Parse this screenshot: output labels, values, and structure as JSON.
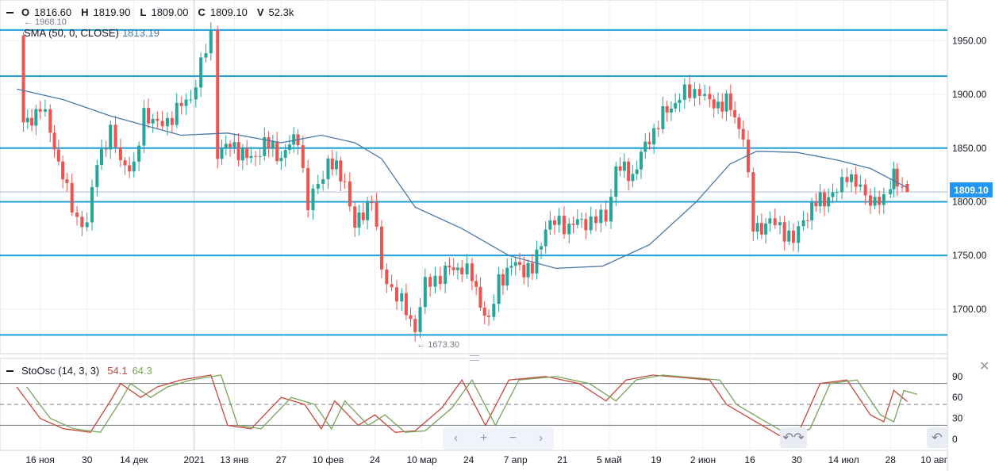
{
  "ohlc": {
    "o_label": "O",
    "o_value": "1816.60",
    "h_label": "H",
    "h_value": "1819.90",
    "l_label": "L",
    "l_value": "1809.00",
    "c_label": "C",
    "c_value": "1809.10",
    "v_label": "V",
    "v_value": "52.3k"
  },
  "indicators": {
    "sma_label": "SMA (50, 0, CLOSE)",
    "sma_value": "1813.19",
    "sto_label": "StoOsc (14, 3, 3)",
    "sto_k": "54.1",
    "sto_d": "64.3"
  },
  "price_axis": {
    "ticks": [
      "1950.00",
      "1900.00",
      "1850.00",
      "1800.00",
      "1750.00",
      "1700.00"
    ],
    "last_price": "1809.10"
  },
  "sto_axis": {
    "ticks": [
      "90",
      "60",
      "30",
      "0"
    ]
  },
  "time_axis": {
    "labels": [
      "16 ноя",
      "30",
      "14 дек",
      "2021",
      "13 янв",
      "27",
      "10 фев",
      "24",
      "10 мар",
      "24",
      "7 апр",
      "21",
      "5 май",
      "19",
      "2 июн",
      "16",
      "30",
      "14 июл",
      "28",
      "10 авг"
    ]
  },
  "annotations": {
    "high_marker": "1968.10",
    "low_marker": "1673.30"
  },
  "colors": {
    "up": "#26a69a",
    "down": "#ef5350",
    "sma": "#4a78a6",
    "hline": "#1e9fd8",
    "sto_k": "#c8463a",
    "sto_d": "#7aa35a",
    "grid": "#eef0f3"
  },
  "nav": {
    "left_icon": "chevron-left-icon",
    "plus_icon": "plus-icon",
    "minus_icon": "minus-icon",
    "right_icon": "chevron-right-icon",
    "reset_icon": "reset-icon"
  },
  "chart_data": {
    "type": "candlestick",
    "symbol_stats": {
      "open": 1816.6,
      "high": 1819.9,
      "low": 1809.0,
      "close": 1809.1,
      "volume": "52.3k"
    },
    "price_range": [
      1660,
      1985
    ],
    "horizontal_levels": [
      1960,
      1917,
      1850,
      1800,
      1750,
      1676
    ],
    "close_path": [
      [
        "2020-11-09",
        1955
      ],
      [
        "2020-11-11",
        1870
      ],
      [
        "2020-11-16",
        1888
      ],
      [
        "2020-11-19",
        1867
      ],
      [
        "2020-11-24",
        1808
      ],
      [
        "2020-11-27",
        1785
      ],
      [
        "2020-11-30",
        1777
      ],
      [
        "2020-12-03",
        1840
      ],
      [
        "2020-12-07",
        1863
      ],
      [
        "2020-12-10",
        1840
      ],
      [
        "2020-12-14",
        1828
      ],
      [
        "2020-12-17",
        1885
      ],
      [
        "2020-12-21",
        1870
      ],
      [
        "2020-12-24",
        1876
      ],
      [
        "2020-12-31",
        1898
      ],
      [
        "2021-01-06",
        1955
      ],
      [
        "2021-01-08",
        1848
      ],
      [
        "2021-01-13",
        1852
      ],
      [
        "2021-01-18",
        1838
      ],
      [
        "2021-01-22",
        1855
      ],
      [
        "2021-01-27",
        1842
      ],
      [
        "2021-02-01",
        1862
      ],
      [
        "2021-02-04",
        1795
      ],
      [
        "2021-02-10",
        1838
      ],
      [
        "2021-02-15",
        1820
      ],
      [
        "2021-02-18",
        1775
      ],
      [
        "2021-02-23",
        1805
      ],
      [
        "2021-02-26",
        1735
      ],
      [
        "2021-03-04",
        1705
      ],
      [
        "2021-03-08",
        1683
      ],
      [
        "2021-03-11",
        1722
      ],
      [
        "2021-03-17",
        1735
      ],
      [
        "2021-03-22",
        1740
      ],
      [
        "2021-03-25",
        1728
      ],
      [
        "2021-03-30",
        1686
      ],
      [
        "2021-04-02",
        1728
      ],
      [
        "2021-04-07",
        1742
      ],
      [
        "2021-04-12",
        1735
      ],
      [
        "2021-04-16",
        1778
      ],
      [
        "2021-04-20",
        1780
      ],
      [
        "2021-04-23",
        1778
      ],
      [
        "2021-04-28",
        1782
      ],
      [
        "2021-05-04",
        1785
      ],
      [
        "2021-05-07",
        1832
      ],
      [
        "2021-05-12",
        1825
      ],
      [
        "2021-05-17",
        1860
      ],
      [
        "2021-05-21",
        1880
      ],
      [
        "2021-05-26",
        1898
      ],
      [
        "2021-06-01",
        1905
      ],
      [
        "2021-06-04",
        1890
      ],
      [
        "2021-06-09",
        1893
      ],
      [
        "2021-06-14",
        1863
      ],
      [
        "2021-06-17",
        1775
      ],
      [
        "2021-06-22",
        1780
      ],
      [
        "2021-06-25",
        1778
      ],
      [
        "2021-06-29",
        1762
      ],
      [
        "2021-07-02",
        1785
      ],
      [
        "2021-07-07",
        1802
      ],
      [
        "2021-07-12",
        1808
      ],
      [
        "2021-07-15",
        1828
      ],
      [
        "2021-07-19",
        1810
      ],
      [
        "2021-07-22",
        1803
      ],
      [
        "2021-07-26",
        1798
      ],
      [
        "2021-07-28",
        1818
      ],
      [
        "2021-07-29",
        1832
      ],
      [
        "2021-07-30",
        1815
      ],
      [
        "2021-08-02",
        1809.1
      ]
    ],
    "sma_50": [
      [
        "2020-11-09",
        1905
      ],
      [
        "2020-11-23",
        1895
      ],
      [
        "2020-12-07",
        1880
      ],
      [
        "2020-12-28",
        1862
      ],
      [
        "2021-01-11",
        1864
      ],
      [
        "2021-01-27",
        1855
      ],
      [
        "2021-02-08",
        1862
      ],
      [
        "2021-02-18",
        1855
      ],
      [
        "2021-02-26",
        1840
      ],
      [
        "2021-03-08",
        1795
      ],
      [
        "2021-03-22",
        1775
      ],
      [
        "2021-04-05",
        1750
      ],
      [
        "2021-04-19",
        1738
      ],
      [
        "2021-05-03",
        1740
      ],
      [
        "2021-05-17",
        1760
      ],
      [
        "2021-05-31",
        1800
      ],
      [
        "2021-06-10",
        1835
      ],
      [
        "2021-06-18",
        1847
      ],
      [
        "2021-06-30",
        1846
      ],
      [
        "2021-07-12",
        1839
      ],
      [
        "2021-07-22",
        1831
      ],
      [
        "2021-08-02",
        1813.19
      ]
    ],
    "stochastic": {
      "k_last": 54.1,
      "d_last": 64.3,
      "levels": [
        80,
        50,
        20
      ],
      "k_path": [
        [
          "2020-11-09",
          75
        ],
        [
          "2020-11-16",
          30
        ],
        [
          "2020-11-23",
          15
        ],
        [
          "2020-12-01",
          10
        ],
        [
          "2020-12-07",
          55
        ],
        [
          "2020-12-10",
          80
        ],
        [
          "2020-12-16",
          60
        ],
        [
          "2020-12-21",
          75
        ],
        [
          "2020-12-28",
          85
        ],
        [
          "2021-01-06",
          92
        ],
        [
          "2021-01-11",
          20
        ],
        [
          "2021-01-18",
          15
        ],
        [
          "2021-01-27",
          60
        ],
        [
          "2021-02-03",
          50
        ],
        [
          "2021-02-08",
          15
        ],
        [
          "2021-02-12",
          55
        ],
        [
          "2021-02-19",
          20
        ],
        [
          "2021-02-24",
          35
        ],
        [
          "2021-03-02",
          10
        ],
        [
          "2021-03-08",
          12
        ],
        [
          "2021-03-16",
          45
        ],
        [
          "2021-03-22",
          85
        ],
        [
          "2021-03-29",
          20
        ],
        [
          "2021-04-05",
          85
        ],
        [
          "2021-04-16",
          90
        ],
        [
          "2021-04-26",
          80
        ],
        [
          "2021-05-04",
          55
        ],
        [
          "2021-05-10",
          85
        ],
        [
          "2021-05-18",
          92
        ],
        [
          "2021-05-28",
          88
        ],
        [
          "2021-06-04",
          85
        ],
        [
          "2021-06-09",
          50
        ],
        [
          "2021-06-16",
          30
        ],
        [
          "2021-06-25",
          5
        ],
        [
          "2021-07-01",
          15
        ],
        [
          "2021-07-07",
          80
        ],
        [
          "2021-07-15",
          85
        ],
        [
          "2021-07-22",
          35
        ],
        [
          "2021-07-26",
          25
        ],
        [
          "2021-07-29",
          70
        ],
        [
          "2021-08-02",
          54.1
        ]
      ]
    },
    "annotations": [
      "1968.10",
      "1673.30"
    ]
  }
}
